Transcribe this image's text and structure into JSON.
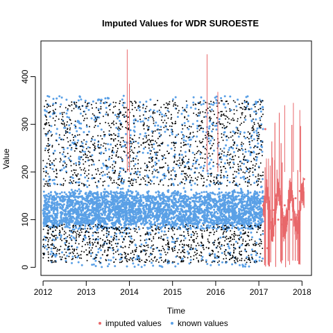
{
  "chart_data": {
    "type": "scatter",
    "title": "Imputed Values for  WDR SUROESTE",
    "xlabel": "Time",
    "ylabel": "Value",
    "xlim": [
      2011.95,
      2018.22
    ],
    "ylim": [
      -17,
      475
    ],
    "x_ticks": [
      2012,
      2013,
      2014,
      2015,
      2016,
      2017,
      2018
    ],
    "y_ticks": [
      0,
      100,
      200,
      300,
      400
    ],
    "legend": {
      "placement": "bottom-center"
    },
    "colors": {
      "imputed": "#E8686B",
      "known": "#5AA0E6",
      "dense": "#000000"
    },
    "series": [
      {
        "name": "imputed values",
        "color": "#E8686B",
        "spikes": [
          [
            2013.95,
            457
          ],
          [
            2014.0,
            385
          ],
          [
            2015.8,
            447
          ],
          [
            2016.05,
            368
          ],
          [
            2017.6,
            340
          ],
          [
            2017.8,
            345
          ],
          [
            2017.95,
            330
          ]
        ],
        "range": [
          2017.1,
          2018.05
        ],
        "values": [
          [
            2017.1,
            130
          ],
          [
            2017.15,
            290
          ],
          [
            2017.2,
            40
          ],
          [
            2017.25,
            110
          ],
          [
            2017.3,
            95
          ],
          [
            2017.35,
            120
          ],
          [
            2017.4,
            150
          ],
          [
            2017.45,
            100
          ],
          [
            2017.5,
            140
          ],
          [
            2017.55,
            90
          ],
          [
            2017.6,
            130
          ],
          [
            2017.65,
            115
          ],
          [
            2017.7,
            135
          ],
          [
            2017.75,
            100
          ],
          [
            2017.8,
            120
          ],
          [
            2017.85,
            145
          ],
          [
            2017.9,
            110
          ],
          [
            2017.95,
            160
          ],
          [
            2018.0,
            150
          ],
          [
            2018.05,
            185
          ]
        ]
      },
      {
        "name": "known values",
        "color": "#5AA0E6",
        "range": [
          2012.0,
          2017.1
        ],
        "band": [
          0,
          360
        ],
        "core": [
          80,
          160
        ]
      }
    ],
    "gaps": [
      2012.35,
      2014.3,
      2014.95,
      2015.45,
      2016.0
    ]
  }
}
